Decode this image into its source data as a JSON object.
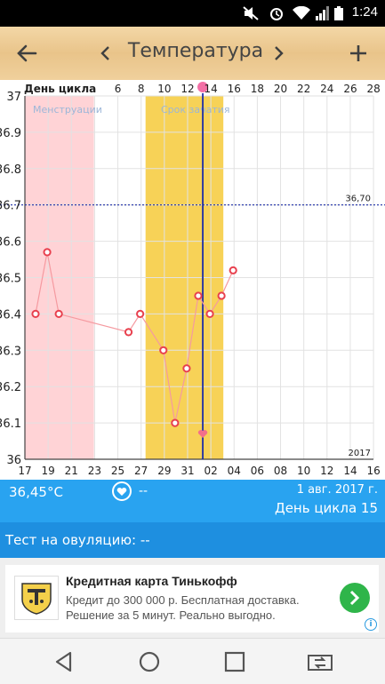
{
  "status_bar": {
    "time": "1:24"
  },
  "toolbar": {
    "title": "Температура"
  },
  "chart_data": {
    "type": "line",
    "top_label": "День цикла",
    "top_ticks": [
      "6",
      "8",
      "10",
      "12",
      "14",
      "16",
      "18",
      "20",
      "22",
      "24",
      "26",
      "28"
    ],
    "x_ticks": [
      "17",
      "19",
      "21",
      "23",
      "25",
      "27",
      "29",
      "31",
      "02",
      "04",
      "06",
      "08",
      "10",
      "12",
      "14",
      "16"
    ],
    "y_ticks": [
      "37",
      "36.9",
      "36.8",
      "36.7",
      "36.6",
      "36.5",
      "36.4",
      "36.3",
      "36.2",
      "36.1",
      "36"
    ],
    "ylim": [
      36.0,
      37.0
    ],
    "period_label": "Менструации",
    "fertile_label": "Срок зачатия",
    "threshold_label": "36,70",
    "threshold_value": 36.7,
    "year_label": "2017",
    "points": [
      {
        "x": 0,
        "y": 36.4
      },
      {
        "x": 1,
        "y": 36.57
      },
      {
        "x": 2,
        "y": 36.4
      },
      {
        "x": 8,
        "y": 36.35
      },
      {
        "x": 9,
        "y": 36.4
      },
      {
        "x": 11,
        "y": 36.3
      },
      {
        "x": 12,
        "y": 36.1
      },
      {
        "x": 13,
        "y": 36.25
      },
      {
        "x": 14,
        "y": 36.45
      },
      {
        "x": 15,
        "y": 36.4
      },
      {
        "x": 16,
        "y": 36.45
      },
      {
        "x": 17,
        "y": 36.52
      }
    ],
    "period_days": [
      0,
      5
    ],
    "fertile_days": [
      10,
      17
    ],
    "current_day": 15,
    "colors": {
      "period": "#ffd3d6",
      "fertile": "#f7d257",
      "line": "#f59aa0",
      "marker": "#e8404e",
      "current": "#1d2ea6",
      "threshold": "#1d2ea6"
    }
  },
  "info_bar": {
    "temperature": "36,45°C",
    "sex_value": "--",
    "date": "1 авг. 2017 г.",
    "cycle_day": "День цикла 15"
  },
  "test_bar": {
    "label": "Тест на овуляцию: --"
  },
  "ad": {
    "title": "Кредитная карта Тинькофф",
    "text": "Кредит до 300 000 р. Бесплатная доставка. Решение за 5 минут. Реально выгодно."
  }
}
